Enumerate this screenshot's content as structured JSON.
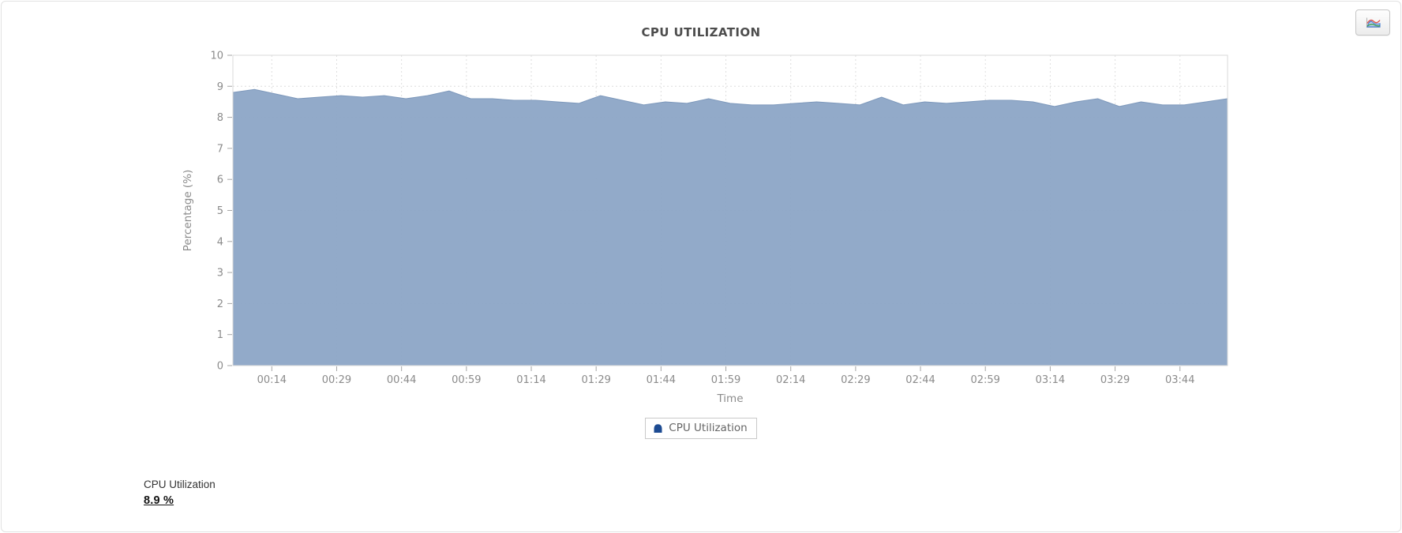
{
  "header": {
    "chart_type_icon": "area-chart-icon"
  },
  "chart_data": {
    "type": "area",
    "title": "CPU UTILIZATION",
    "xlabel": "Time",
    "ylabel": "Percentage (%)",
    "ylim": [
      0,
      10
    ],
    "y_ticks": [
      0,
      1,
      2,
      3,
      4,
      5,
      6,
      7,
      8,
      9,
      10
    ],
    "x_tick_labels": [
      "00:14",
      "00:29",
      "00:44",
      "00:59",
      "01:14",
      "01:29",
      "01:44",
      "01:59",
      "02:14",
      "02:29",
      "02:44",
      "02:59",
      "03:14",
      "03:29",
      "03:44"
    ],
    "grid": true,
    "legend_position": "bottom",
    "series": [
      {
        "name": "CPU Utilization",
        "color": "#8ca5c6",
        "edge_color": "#7d98bb",
        "x": [
          "00:05",
          "00:10",
          "00:15",
          "00:20",
          "00:25",
          "00:30",
          "00:35",
          "00:40",
          "00:45",
          "00:50",
          "00:55",
          "01:00",
          "01:05",
          "01:10",
          "01:15",
          "01:20",
          "01:25",
          "01:30",
          "01:35",
          "01:40",
          "01:45",
          "01:50",
          "01:55",
          "02:00",
          "02:05",
          "02:10",
          "02:15",
          "02:20",
          "02:25",
          "02:30",
          "02:35",
          "02:40",
          "02:45",
          "02:50",
          "02:55",
          "03:00",
          "03:05",
          "03:10",
          "03:15",
          "03:20",
          "03:25",
          "03:30",
          "03:35",
          "03:40",
          "03:45",
          "03:50",
          "03:55"
        ],
        "values": [
          8.8,
          8.9,
          8.75,
          8.6,
          8.65,
          8.7,
          8.65,
          8.7,
          8.6,
          8.7,
          8.85,
          8.6,
          8.6,
          8.55,
          8.55,
          8.5,
          8.45,
          8.7,
          8.55,
          8.4,
          8.5,
          8.45,
          8.6,
          8.45,
          8.4,
          8.4,
          8.45,
          8.5,
          8.45,
          8.4,
          8.65,
          8.4,
          8.5,
          8.45,
          8.5,
          8.55,
          8.55,
          8.5,
          8.35,
          8.5,
          8.6,
          8.35,
          8.5,
          8.4,
          8.4,
          8.5,
          8.6
        ]
      }
    ],
    "colors": {
      "gridline": "#dedede",
      "plot_border": "#d9d9d9",
      "axis_text": "#8b8b8b",
      "title_text": "#4d4d4d"
    }
  },
  "legend": {
    "label": "CPU Utilization",
    "marker_color": "#1d4b92"
  },
  "footer": {
    "label": "CPU Utilization",
    "value": "8.9 %"
  }
}
